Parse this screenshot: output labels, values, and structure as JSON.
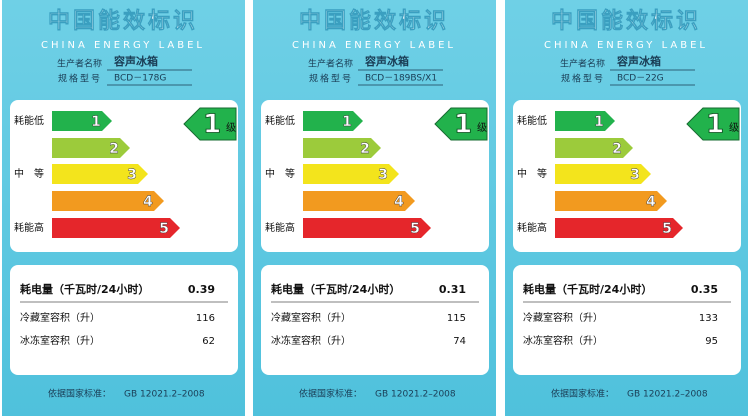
{
  "title": "中国能效标识",
  "subtitle": "CHINA ENERGY LABEL",
  "manufacturer_label": "生产者名称",
  "model_label": "规格型号",
  "scale": {
    "grades": [
      "1",
      "2",
      "3",
      "4",
      "5"
    ],
    "low": "耗能低",
    "mid": "中　等",
    "high": "耗能高"
  },
  "grade_unit": "级",
  "consumption_label": "耗电量（千瓦时/24小时）",
  "fridge_label": "冷藏室容积（升）",
  "freezer_label": "冰冻室容积（升）",
  "standard_label": "依据国家标准：",
  "standard": "GB 12021.2–2008",
  "labels": [
    {
      "manufacturer": "容声冰箱",
      "model": "BCD－178G",
      "grade": "1",
      "consumption": 0.39,
      "fridge": 116,
      "freezer": 62
    },
    {
      "manufacturer": "容声冰箱",
      "model": "BCD－189BS/X1",
      "grade": "1",
      "consumption": 0.31,
      "fridge": 115,
      "freezer": 74
    },
    {
      "manufacturer": "容声冰箱",
      "model": "BCD－22G",
      "grade": "1",
      "consumption": 0.35,
      "fridge": 133,
      "freezer": 95
    }
  ]
}
